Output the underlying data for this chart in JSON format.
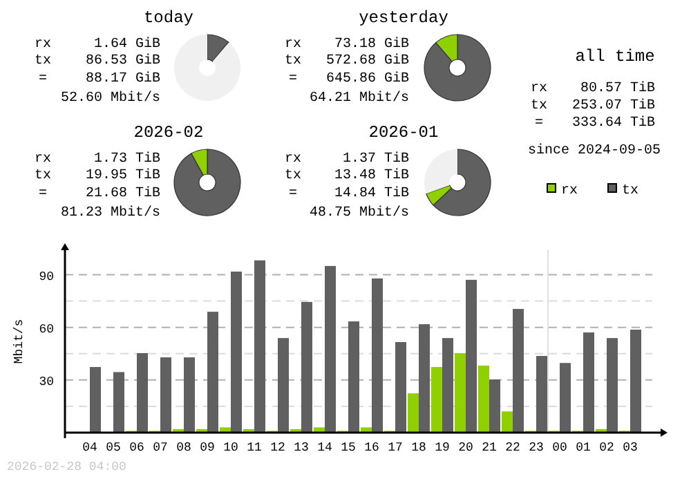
{
  "chart_data": [
    {
      "type": "donut",
      "title": "today",
      "categories": [
        null,
        null,
        null
      ],
      "values": [
        11,
        0.2,
        88.8
      ],
      "colors": [
        "#606060",
        "#90d000",
        "#f0f0f0"
      ],
      "annotations": [
        "rx 1.64 GiB",
        "tx 86.53 GiB",
        "= 88.17 GiB",
        "52.60 Mbit/s"
      ]
    },
    {
      "type": "donut",
      "title": "yesterday",
      "categories": [
        null,
        null
      ],
      "values": [
        88.7,
        11.3
      ],
      "colors": [
        "#606060",
        "#90d000"
      ],
      "annotations": [
        "rx 73.18 GiB",
        "tx 572.68 GiB",
        "= 645.86 GiB",
        "64.21 Mbit/s"
      ]
    },
    {
      "type": "donut",
      "title": "2026-02",
      "categories": [
        null,
        null
      ],
      "values": [
        92,
        8
      ],
      "colors": [
        "#606060",
        "#90d000"
      ],
      "annotations": [
        "rx 1.73 TiB",
        "tx 19.95 TiB",
        "= 21.68 TiB",
        "81.23 Mbit/s"
      ]
    },
    {
      "type": "donut",
      "title": "2026-01",
      "categories": [
        null,
        null,
        null
      ],
      "values": [
        63,
        6.5,
        30.5
      ],
      "colors": [
        "#606060",
        "#90d000",
        "#f0f0f0"
      ],
      "annotations": [
        "rx 1.37 TiB",
        "tx 13.48 TiB",
        "= 14.84 TiB",
        "48.75 Mbit/s"
      ]
    },
    {
      "type": "other",
      "title": "all time",
      "annotations": [
        "rx 80.57 TiB",
        "tx 253.07 TiB",
        "= 333.64 TiB",
        "since 2024-09-05"
      ]
    },
    {
      "type": "bar",
      "ylabel": "Mbit/s",
      "categories": [
        "04",
        "05",
        "06",
        "07",
        "08",
        "09",
        "10",
        "11",
        "12",
        "13",
        "14",
        "15",
        "16",
        "17",
        "18",
        "19",
        "20",
        "21",
        "22",
        "23",
        "00",
        "01",
        "02",
        "03"
      ],
      "series": [
        {
          "name": "rx",
          "color": "#90d000",
          "values": [
            0,
            0,
            1,
            1,
            2,
            2,
            3,
            2,
            1,
            2,
            3,
            1,
            3,
            1,
            22.4,
            37.4,
            45.3,
            38.2,
            12.1,
            1,
            1,
            1,
            2,
            1
          ]
        },
        {
          "name": "tx",
          "color": "#606060",
          "values": [
            37.4,
            34.5,
            45.3,
            42.9,
            42.9,
            68.9,
            91.8,
            98.2,
            53.9,
            74.5,
            95,
            63.4,
            87.9,
            51.6,
            61.8,
            53.9,
            87.1,
            30.3,
            70.5,
            43.7,
            39.7,
            57.1,
            53.9,
            58.7
          ]
        }
      ],
      "ylim": [
        0,
        104
      ],
      "yticks": [
        {
          "value": 15,
          "label": null
        },
        30,
        {
          "value": 45,
          "label": null
        },
        60,
        {
          "value": 75,
          "label": null
        },
        90
      ],
      "grid": true,
      "legend": "top right",
      "ref_lines": [
        {
          "axis": "x",
          "value": "00",
          "color": "#e0e0e0"
        }
      ],
      "annotations": [
        "2026-02-28 04:00"
      ]
    }
  ]
}
